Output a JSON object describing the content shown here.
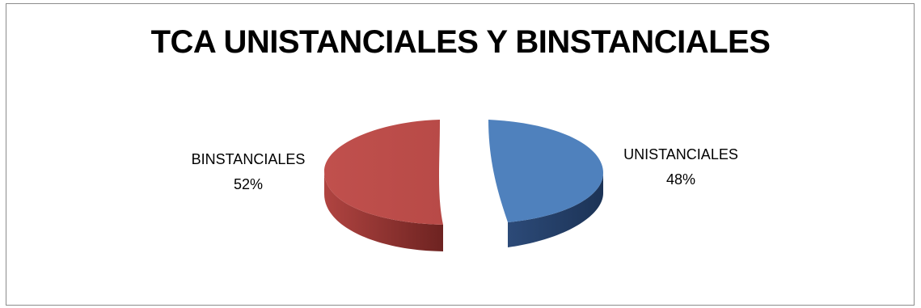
{
  "chart_data": {
    "type": "pie",
    "title": "TCA UNISTANCIALES Y BINSTANCIALES",
    "slices": [
      {
        "label": "UNISTANCIALES",
        "value": 48,
        "value_label": "48%",
        "color": "#4f81bd"
      },
      {
        "label": "BINSTANCIALES",
        "value": 52,
        "value_label": "52%",
        "color": "#c0504d"
      }
    ],
    "legend": "none",
    "style": "3d-exploded"
  }
}
